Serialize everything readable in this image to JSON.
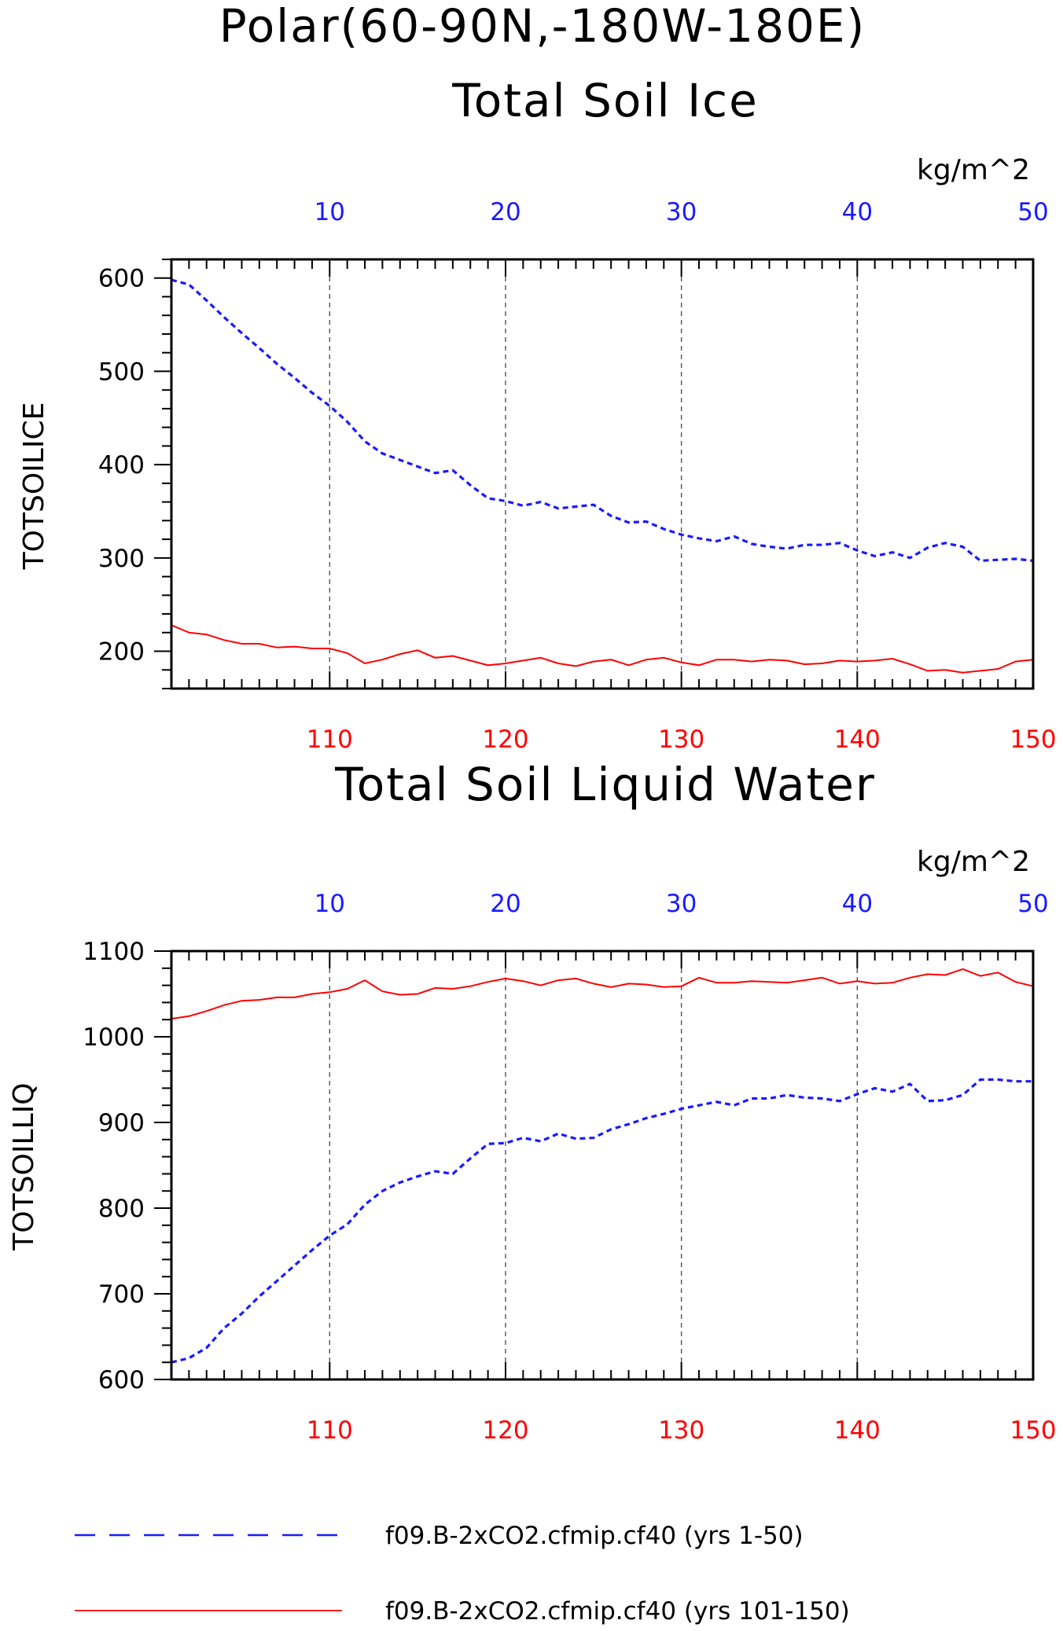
{
  "title": "Polar(60-90N,-180W-180E)",
  "colors": {
    "series_a": "#1a1aff",
    "series_b": "#ff0000",
    "axis": "#000000",
    "grid": "#555555"
  },
  "chart_data": [
    {
      "type": "line",
      "title": "Total Soil Ice",
      "ylabel": "TOTSOILICE",
      "units": "kg/m^2",
      "top_axis": {
        "range": [
          1,
          50
        ],
        "ticks": [
          10,
          20,
          30,
          40,
          50
        ],
        "labels": [
          "10",
          "20",
          "30",
          "40",
          "50"
        ]
      },
      "bottom_axis": {
        "range": [
          101,
          150
        ],
        "ticks": [
          110,
          120,
          130,
          140,
          150
        ],
        "labels": [
          "110",
          "120",
          "130",
          "140",
          "150"
        ]
      },
      "ylim": [
        160,
        620
      ],
      "yticks": [
        200,
        300,
        400,
        500,
        600
      ],
      "ytick_labels": [
        "200",
        "300",
        "400",
        "500",
        "600"
      ],
      "grid": "vertical dashed at top-axis ticks",
      "series": [
        {
          "label": "f09.B-2xCO2.cfmip.cf40 (yrs 1-50)",
          "axis": "top",
          "style": "dashed",
          "x": [
            1,
            2,
            3,
            4,
            5,
            6,
            7,
            8,
            9,
            10,
            11,
            12,
            13,
            14,
            15,
            16,
            17,
            18,
            19,
            20,
            21,
            22,
            23,
            24,
            25,
            26,
            27,
            28,
            29,
            30,
            31,
            32,
            33,
            34,
            35,
            36,
            37,
            38,
            39,
            40,
            41,
            42,
            43,
            44,
            45,
            46,
            47,
            48,
            49,
            50
          ],
          "y": [
            598,
            593,
            576,
            558,
            541,
            525,
            508,
            493,
            477,
            463,
            446,
            425,
            412,
            405,
            398,
            391,
            394,
            378,
            364,
            361,
            356,
            360,
            353,
            355,
            357,
            345,
            338,
            339,
            331,
            325,
            321,
            318,
            323,
            315,
            312,
            310,
            314,
            314,
            316,
            308,
            302,
            306,
            300,
            311,
            316,
            312,
            297,
            298,
            299,
            297
          ]
        },
        {
          "label": "f09.B-2xCO2.cfmip.cf40 (yrs 101-150)",
          "axis": "bottom",
          "style": "solid",
          "x": [
            101,
            102,
            103,
            104,
            105,
            106,
            107,
            108,
            109,
            110,
            111,
            112,
            113,
            114,
            115,
            116,
            117,
            118,
            119,
            120,
            121,
            122,
            123,
            124,
            125,
            126,
            127,
            128,
            129,
            130,
            131,
            132,
            133,
            134,
            135,
            136,
            137,
            138,
            139,
            140,
            141,
            142,
            143,
            144,
            145,
            146,
            147,
            148,
            149,
            150
          ],
          "y": [
            228,
            220,
            218,
            212,
            208,
            208,
            204,
            205,
            203,
            203,
            198,
            187,
            191,
            197,
            201,
            193,
            195,
            190,
            185,
            187,
            190,
            193,
            187,
            184,
            189,
            191,
            185,
            191,
            193,
            188,
            185,
            191,
            191,
            189,
            191,
            190,
            186,
            187,
            190,
            189,
            190,
            192,
            186,
            179,
            180,
            177,
            179,
            181,
            189,
            191
          ]
        }
      ]
    },
    {
      "type": "line",
      "title": "Total Soil Liquid Water",
      "ylabel": "TOTSOILLIQ",
      "units": "kg/m^2",
      "top_axis": {
        "range": [
          1,
          50
        ],
        "ticks": [
          10,
          20,
          30,
          40,
          50
        ],
        "labels": [
          "10",
          "20",
          "30",
          "40",
          "50"
        ]
      },
      "bottom_axis": {
        "range": [
          101,
          150
        ],
        "ticks": [
          110,
          120,
          130,
          140,
          150
        ],
        "labels": [
          "110",
          "120",
          "130",
          "140",
          "150"
        ]
      },
      "ylim": [
        600,
        1100
      ],
      "yticks": [
        600,
        700,
        800,
        900,
        1000,
        1100
      ],
      "ytick_labels": [
        "600",
        "700",
        "800",
        "900",
        "1000",
        "1100"
      ],
      "grid": "vertical dashed at top-axis ticks",
      "series": [
        {
          "label": "f09.B-2xCO2.cfmip.cf40 (yrs 1-50)",
          "axis": "top",
          "style": "dashed",
          "x": [
            1,
            2,
            3,
            4,
            5,
            6,
            7,
            8,
            9,
            10,
            11,
            12,
            13,
            14,
            15,
            16,
            17,
            18,
            19,
            20,
            21,
            22,
            23,
            24,
            25,
            26,
            27,
            28,
            29,
            30,
            31,
            32,
            33,
            34,
            35,
            36,
            37,
            38,
            39,
            40,
            41,
            42,
            43,
            44,
            45,
            46,
            47,
            48,
            49,
            50
          ],
          "y": [
            620,
            625,
            637,
            660,
            677,
            697,
            715,
            733,
            751,
            768,
            781,
            804,
            820,
            830,
            837,
            843,
            840,
            858,
            875,
            876,
            882,
            878,
            887,
            881,
            882,
            892,
            898,
            905,
            910,
            916,
            920,
            924,
            920,
            928,
            928,
            932,
            929,
            928,
            925,
            933,
            940,
            936,
            945,
            925,
            926,
            932,
            950,
            950,
            948,
            948
          ]
        },
        {
          "label": "f09.B-2xCO2.cfmip.cf40 (yrs 101-150)",
          "axis": "bottom",
          "style": "solid",
          "x": [
            101,
            102,
            103,
            104,
            105,
            106,
            107,
            108,
            109,
            110,
            111,
            112,
            113,
            114,
            115,
            116,
            117,
            118,
            119,
            120,
            121,
            122,
            123,
            124,
            125,
            126,
            127,
            128,
            129,
            130,
            131,
            132,
            133,
            134,
            135,
            136,
            137,
            138,
            139,
            140,
            141,
            142,
            143,
            144,
            145,
            146,
            147,
            148,
            149,
            150
          ],
          "y": [
            1021,
            1024,
            1030,
            1037,
            1042,
            1043,
            1046,
            1046,
            1050,
            1052,
            1056,
            1066,
            1053,
            1049,
            1050,
            1057,
            1056,
            1059,
            1064,
            1068,
            1065,
            1060,
            1066,
            1068,
            1062,
            1058,
            1062,
            1061,
            1058,
            1059,
            1069,
            1063,
            1063,
            1065,
            1064,
            1063,
            1066,
            1069,
            1062,
            1065,
            1062,
            1063,
            1069,
            1073,
            1072,
            1079,
            1071,
            1075,
            1064,
            1059
          ]
        }
      ]
    }
  ],
  "legend": {
    "placement": "bottom",
    "items": [
      {
        "label": "f09.B-2xCO2.cfmip.cf40 (yrs 1-50)",
        "style": "dashed",
        "color": "#1a1aff"
      },
      {
        "label": "f09.B-2xCO2.cfmip.cf40 (yrs 101-150)",
        "style": "solid",
        "color": "#ff0000"
      }
    ]
  }
}
